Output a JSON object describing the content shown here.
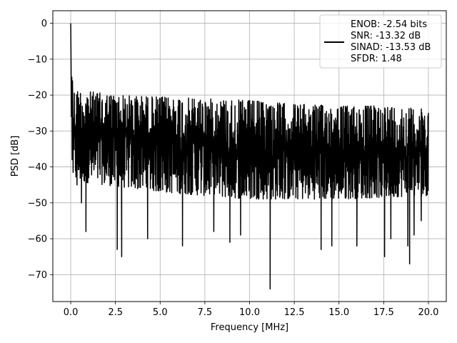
{
  "chart_data": {
    "type": "line",
    "title": "",
    "xlabel": "Frequency [MHz]",
    "ylabel": "PSD [dB]",
    "xlim": [
      -1.0,
      21.0
    ],
    "ylim": [
      -77.5,
      3.5
    ],
    "xticks": [
      0.0,
      2.5,
      5.0,
      7.5,
      10.0,
      12.5,
      15.0,
      17.5,
      20.0
    ],
    "xtick_labels": [
      "0.0",
      "2.5",
      "5.0",
      "7.5",
      "10.0",
      "12.5",
      "15.0",
      "17.5",
      "20.0"
    ],
    "yticks": [
      0,
      -10,
      -20,
      -30,
      -40,
      -50,
      -60,
      -70
    ],
    "ytick_labels": [
      "0",
      "−10",
      "−20",
      "−30",
      "−40",
      "−50",
      "−60",
      "−70"
    ],
    "grid": true,
    "legend_position": "top-right",
    "series": [
      {
        "name": "ENOB: -2.54 bits\nSNR: -13.32 dB\nSINAD: -13.53 dB\nSFDR: 1.48",
        "color": "#000000",
        "description": "dense noisy PSD trace; peak 0 dB at 0 MHz, drops to about -15 dB, upper envelope falls from about -19 dB near 0.5 MHz to about -24 dB at 20 MHz, bulk between -48 and -22 dB, deep notches to about -74 dB near 11.1 MHz",
        "x_range": [
          0.0,
          20.0
        ],
        "start_peak_db": 0,
        "envelope_top": [
          [
            0.3,
            -18.5
          ],
          [
            2.5,
            -20
          ],
          [
            5,
            -20.5
          ],
          [
            7.5,
            -21
          ],
          [
            10,
            -21.5
          ],
          [
            12.5,
            -22.5
          ],
          [
            15,
            -23
          ],
          [
            17.5,
            -23
          ],
          [
            20,
            -24
          ]
        ],
        "envelope_bottom_typical": [
          [
            0.3,
            -44
          ],
          [
            5,
            -47
          ],
          [
            10,
            -49
          ],
          [
            15,
            -49
          ],
          [
            20,
            -48
          ]
        ],
        "notable_minima": [
          [
            0.35,
            -45
          ],
          [
            0.6,
            -50
          ],
          [
            0.85,
            -58
          ],
          [
            2.6,
            -63
          ],
          [
            2.85,
            -65
          ],
          [
            4.3,
            -60
          ],
          [
            6.25,
            -62
          ],
          [
            8.0,
            -58
          ],
          [
            8.9,
            -61
          ],
          [
            9.5,
            -59
          ],
          [
            11.15,
            -74
          ],
          [
            14.0,
            -63
          ],
          [
            14.6,
            -62
          ],
          [
            16.0,
            -62
          ],
          [
            17.55,
            -65
          ],
          [
            17.9,
            -60
          ],
          [
            18.85,
            -62
          ],
          [
            18.95,
            -67
          ],
          [
            19.2,
            -59
          ],
          [
            19.6,
            -55
          ]
        ]
      }
    ]
  }
}
